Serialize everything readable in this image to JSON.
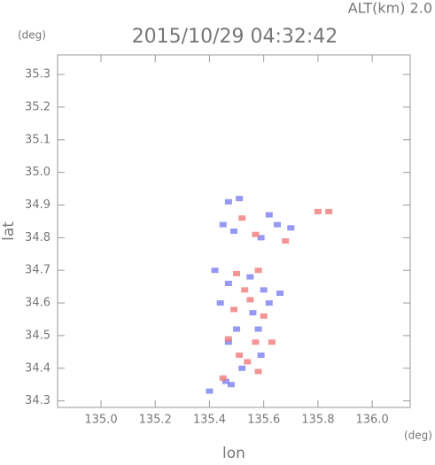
{
  "chart_data": {
    "type": "scatter",
    "title": "2015/10/29 04:32:42",
    "subtitle": "ALT(km) 2.0",
    "y_unit": "(deg)",
    "x_unit": "(deg)",
    "xlabel": "lon",
    "ylabel": "lat",
    "xlim": [
      134.84,
      136.14
    ],
    "ylim": [
      34.28,
      35.36
    ],
    "xticks": [
      {
        "value": 135,
        "label": "135.0"
      },
      135.2,
      135.4,
      135.6,
      135.8,
      {
        "value": 136,
        "label": "136.0"
      }
    ],
    "yticks": [
      34.3,
      34.4,
      34.5,
      34.6,
      34.7,
      34.8,
      34.9,
      {
        "value": 35,
        "label": "35.0"
      },
      35.1,
      35.2,
      35.3
    ],
    "series": [
      {
        "color": "#7a7ff0",
        "x": [
          135.47,
          135.51,
          135.45,
          135.49,
          135.62,
          135.65,
          135.59,
          135.42,
          135.47,
          135.55,
          135.6,
          135.44,
          135.56,
          135.62,
          135.5,
          135.58,
          135.47,
          135.59,
          135.52,
          135.48,
          135.46,
          135.4,
          135.66,
          135.7
        ],
        "values": [
          34.91,
          34.92,
          34.84,
          34.82,
          34.87,
          34.84,
          34.8,
          34.7,
          34.66,
          34.68,
          34.64,
          34.6,
          34.57,
          34.6,
          34.52,
          34.52,
          34.48,
          34.44,
          34.4,
          34.35,
          34.36,
          34.33,
          34.63,
          34.83
        ]
      },
      {
        "color": "#f07a7a",
        "x": [
          135.52,
          135.57,
          135.8,
          135.84,
          135.5,
          135.58,
          135.53,
          135.49,
          135.6,
          135.55,
          135.47,
          135.57,
          135.63,
          135.54,
          135.58,
          135.51,
          135.45,
          135.68
        ],
        "values": [
          34.86,
          34.81,
          34.88,
          34.88,
          34.69,
          34.7,
          34.64,
          34.58,
          34.56,
          34.61,
          34.49,
          34.48,
          34.48,
          34.42,
          34.39,
          34.44,
          34.37,
          34.79
        ]
      }
    ]
  }
}
